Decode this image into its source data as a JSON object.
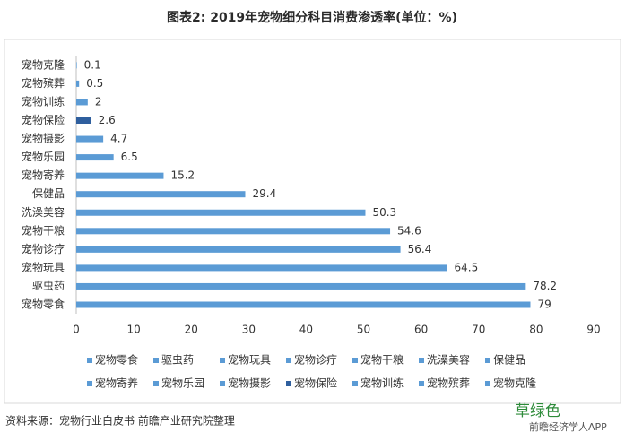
{
  "chart_data": {
    "type": "bar",
    "orientation": "horizontal",
    "title": "图表2: 2019年宠物细分科目消费渗透率(单位：%)",
    "categories": [
      "宠物零食",
      "驱虫药",
      "宠物玩具",
      "宠物诊疗",
      "宠物干粮",
      "洗澡美容",
      "保健品",
      "宠物寄养",
      "宠物乐园",
      "宠物摄影",
      "宠物保险",
      "宠物训练",
      "宠物殡葬",
      "宠物克隆"
    ],
    "values": [
      79,
      78.2,
      64.5,
      56.4,
      54.6,
      50.3,
      29.4,
      15.2,
      6.5,
      4.7,
      2.6,
      2,
      0.5,
      0.1
    ],
    "colors": [
      "#5b9bd5",
      "#5b9bd5",
      "#5b9bd5",
      "#5b9bd5",
      "#5b9bd5",
      "#5b9bd5",
      "#5b9bd5",
      "#5b9bd5",
      "#5b9bd5",
      "#5b9bd5",
      "#2f5f9e",
      "#5b9bd5",
      "#5b9bd5",
      "#5b9bd5"
    ],
    "xlim": [
      0,
      90
    ],
    "xticks": [
      0,
      10,
      20,
      30,
      40,
      50,
      60,
      70,
      80,
      90
    ],
    "source": "资料来源：宠物行业白皮书 前瞻产业研究院整理",
    "watermarks": [
      "草绿色",
      "前瞻经济学人APP"
    ]
  }
}
